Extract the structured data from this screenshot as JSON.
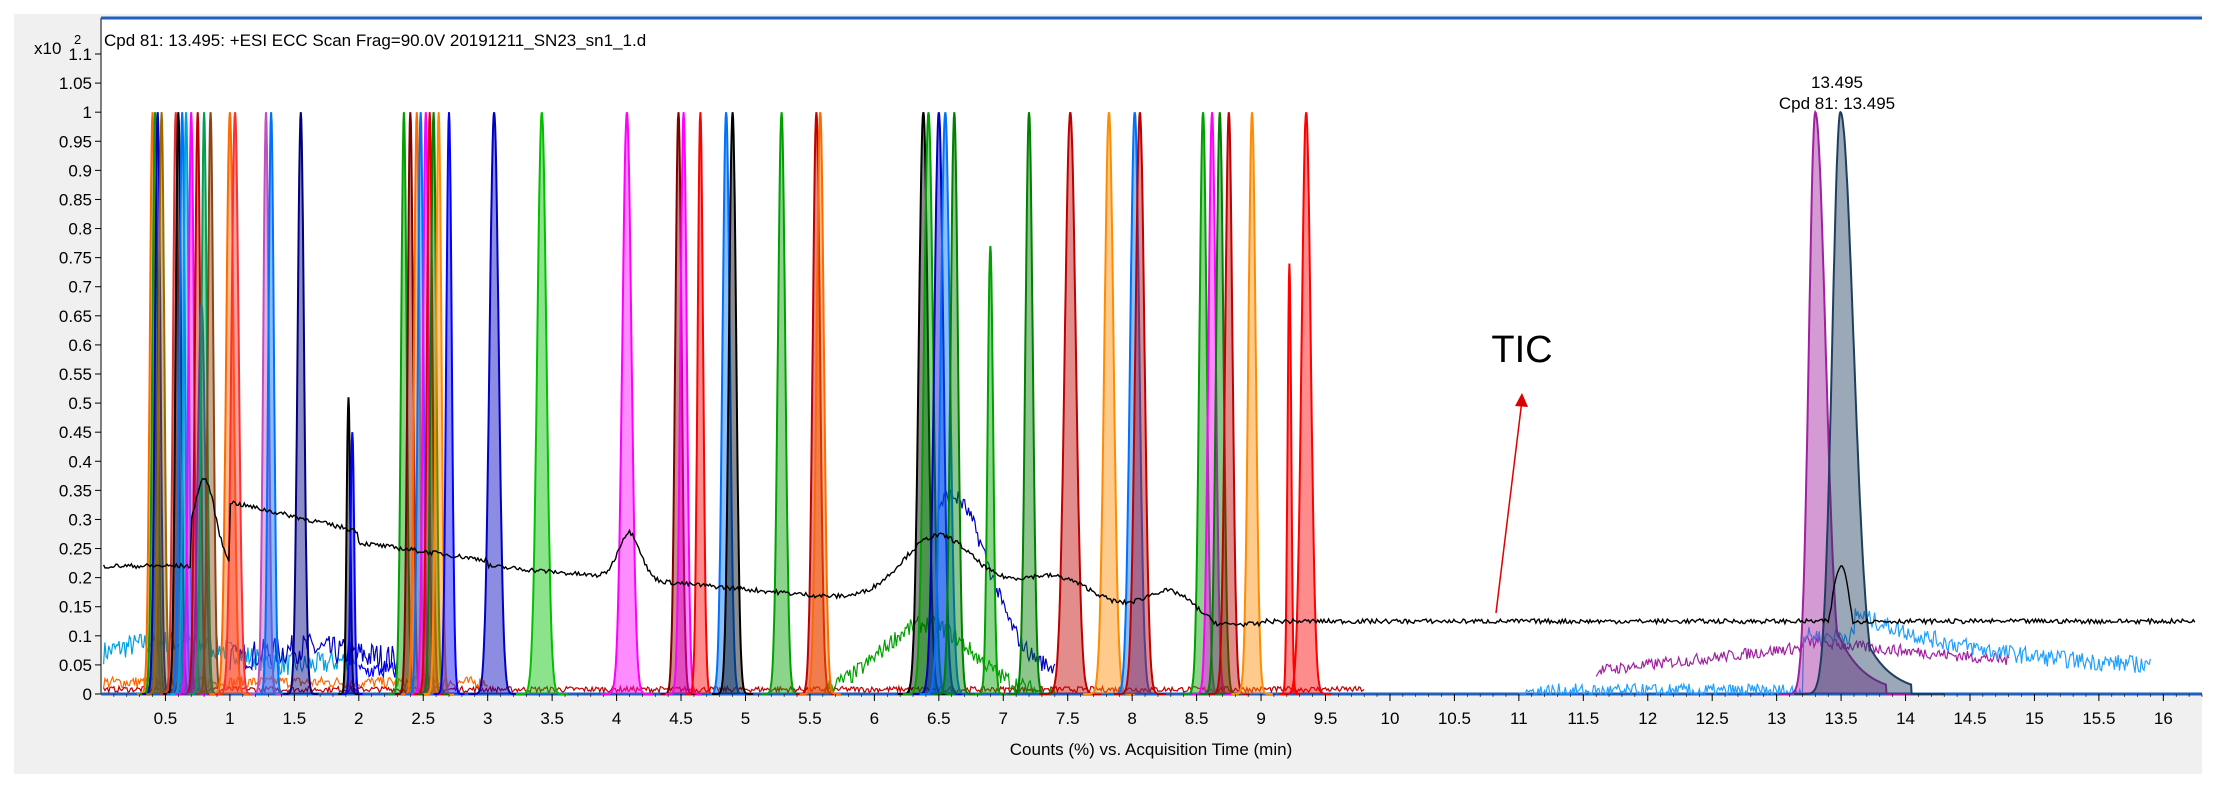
{
  "chart_data": {
    "type": "line",
    "title": "Cpd 81: 13.495: +ESI ECC Scan Frag=90.0V 20191211_SN23_sn1_1.d",
    "y_multiplier": "x10",
    "y_multiplier_exp": "2",
    "xlabel": "Counts (%) vs. Acquisition Time (min)",
    "ylabel": "",
    "xlim": [
      0,
      16.3
    ],
    "ylim": [
      0,
      1.1
    ],
    "x_ticks": [
      "0.5",
      "1",
      "1.5",
      "2",
      "2.5",
      "3",
      "3.5",
      "4",
      "4.5",
      "5",
      "5.5",
      "6",
      "6.5",
      "7",
      "7.5",
      "8",
      "8.5",
      "9",
      "9.5",
      "10",
      "10.5",
      "11",
      "11.5",
      "12",
      "12.5",
      "13",
      "13.5",
      "14",
      "14.5",
      "15",
      "15.5",
      "16"
    ],
    "y_ticks": [
      "0",
      "0.05",
      "0.1",
      "0.15",
      "0.2",
      "0.25",
      "0.3",
      "0.35",
      "0.4",
      "0.45",
      "0.5",
      "0.55",
      "0.6",
      "0.65",
      "0.7",
      "0.75",
      "0.8",
      "0.85",
      "0.9",
      "0.95",
      "1",
      "1.05",
      "1.1"
    ],
    "peak_label_time": "13.495",
    "peak_label_cpd": "Cpd 81: 13.495",
    "annotation_text": "TIC",
    "annotation_color": "#e00000",
    "grid": false,
    "peaks": [
      {
        "t": 0.4,
        "h": 1.0,
        "w": 0.03,
        "color": "#ff6a00"
      },
      {
        "t": 0.42,
        "h": 1.0,
        "w": 0.03,
        "color": "#00a000"
      },
      {
        "t": 0.44,
        "h": 1.0,
        "w": 0.03,
        "color": "#0000c0"
      },
      {
        "t": 0.47,
        "h": 1.0,
        "w": 0.03,
        "color": "#9a6a00"
      },
      {
        "t": 0.58,
        "h": 1.0,
        "w": 0.03,
        "color": "#e03030"
      },
      {
        "t": 0.6,
        "h": 1.0,
        "w": 0.03,
        "color": "#000000"
      },
      {
        "t": 0.63,
        "h": 1.0,
        "w": 0.03,
        "color": "#0070ff"
      },
      {
        "t": 0.66,
        "h": 1.0,
        "w": 0.03,
        "color": "#00a0e0"
      },
      {
        "t": 0.7,
        "h": 1.0,
        "w": 0.03,
        "color": "#ff00ff"
      },
      {
        "t": 0.75,
        "h": 1.0,
        "w": 0.03,
        "color": "#c00000"
      },
      {
        "t": 0.78,
        "h": 0.67,
        "w": 0.04,
        "color": "#7030a0"
      },
      {
        "t": 0.8,
        "h": 1.0,
        "w": 0.03,
        "color": "#00a050"
      },
      {
        "t": 0.85,
        "h": 1.0,
        "w": 0.03,
        "color": "#8b4513"
      },
      {
        "t": 1.0,
        "h": 1.0,
        "w": 0.04,
        "color": "#ff6a00"
      },
      {
        "t": 1.04,
        "h": 1.0,
        "w": 0.04,
        "color": "#ff3030"
      },
      {
        "t": 1.28,
        "h": 1.0,
        "w": 0.03,
        "color": "#c050c0"
      },
      {
        "t": 1.32,
        "h": 1.0,
        "w": 0.03,
        "color": "#0070ff"
      },
      {
        "t": 1.55,
        "h": 1.0,
        "w": 0.035,
        "color": "#000080"
      },
      {
        "t": 1.92,
        "h": 0.51,
        "w": 0.02,
        "color": "#000000"
      },
      {
        "t": 1.95,
        "h": 0.45,
        "w": 0.02,
        "color": "#0000ff"
      },
      {
        "t": 2.35,
        "h": 1.0,
        "w": 0.03,
        "color": "#00a000"
      },
      {
        "t": 2.4,
        "h": 1.0,
        "w": 0.03,
        "color": "#800000"
      },
      {
        "t": 2.45,
        "h": 1.0,
        "w": 0.03,
        "color": "#ff6a00"
      },
      {
        "t": 2.48,
        "h": 1.0,
        "w": 0.03,
        "color": "#0070ff"
      },
      {
        "t": 2.52,
        "h": 1.0,
        "w": 0.03,
        "color": "#ff00ff"
      },
      {
        "t": 2.55,
        "h": 1.0,
        "w": 0.03,
        "color": "#e00000"
      },
      {
        "t": 2.58,
        "h": 1.0,
        "w": 0.03,
        "color": "#008000"
      },
      {
        "t": 2.62,
        "h": 1.0,
        "w": 0.03,
        "color": "#ff8c00"
      },
      {
        "t": 2.7,
        "h": 1.0,
        "w": 0.03,
        "color": "#0000ff"
      },
      {
        "t": 3.05,
        "h": 1.0,
        "w": 0.05,
        "color": "#0000c0"
      },
      {
        "t": 3.42,
        "h": 1.0,
        "w": 0.05,
        "color": "#00c000"
      },
      {
        "t": 4.08,
        "h": 1.0,
        "w": 0.05,
        "color": "#ff00ff"
      },
      {
        "t": 4.48,
        "h": 1.0,
        "w": 0.035,
        "color": "#800000"
      },
      {
        "t": 4.52,
        "h": 1.0,
        "w": 0.035,
        "color": "#ff00ff"
      },
      {
        "t": 4.65,
        "h": 1.0,
        "w": 0.03,
        "color": "#ff0000"
      },
      {
        "t": 4.85,
        "h": 1.0,
        "w": 0.04,
        "color": "#0070ff"
      },
      {
        "t": 4.9,
        "h": 1.0,
        "w": 0.04,
        "color": "#000000"
      },
      {
        "t": 5.28,
        "h": 1.0,
        "w": 0.04,
        "color": "#00a000"
      },
      {
        "t": 5.55,
        "h": 1.0,
        "w": 0.04,
        "color": "#c00000"
      },
      {
        "t": 5.58,
        "h": 1.0,
        "w": 0.04,
        "color": "#ff6a00"
      },
      {
        "t": 6.38,
        "h": 1.0,
        "w": 0.05,
        "color": "#000000"
      },
      {
        "t": 6.42,
        "h": 1.0,
        "w": 0.05,
        "color": "#00a000"
      },
      {
        "t": 6.5,
        "h": 1.0,
        "w": 0.05,
        "color": "#0000c0"
      },
      {
        "t": 6.55,
        "h": 1.0,
        "w": 0.05,
        "color": "#0070ff"
      },
      {
        "t": 6.62,
        "h": 1.0,
        "w": 0.04,
        "color": "#008000"
      },
      {
        "t": 6.9,
        "h": 0.77,
        "w": 0.03,
        "color": "#00a000"
      },
      {
        "t": 7.2,
        "h": 1.0,
        "w": 0.04,
        "color": "#008000"
      },
      {
        "t": 7.52,
        "h": 1.0,
        "w": 0.06,
        "color": "#c00000"
      },
      {
        "t": 7.82,
        "h": 1.0,
        "w": 0.05,
        "color": "#ff8c00"
      },
      {
        "t": 8.02,
        "h": 1.0,
        "w": 0.05,
        "color": "#0070ff"
      },
      {
        "t": 8.06,
        "h": 1.0,
        "w": 0.05,
        "color": "#c00000"
      },
      {
        "t": 8.55,
        "h": 1.0,
        "w": 0.04,
        "color": "#00a000"
      },
      {
        "t": 8.62,
        "h": 1.0,
        "w": 0.04,
        "color": "#ff00ff"
      },
      {
        "t": 8.68,
        "h": 1.0,
        "w": 0.04,
        "color": "#008000"
      },
      {
        "t": 8.75,
        "h": 1.0,
        "w": 0.04,
        "color": "#c00000"
      },
      {
        "t": 8.93,
        "h": 1.0,
        "w": 0.04,
        "color": "#ff8c00"
      },
      {
        "t": 9.22,
        "h": 0.74,
        "w": 0.02,
        "color": "#ff0000"
      },
      {
        "t": 9.35,
        "h": 1.0,
        "w": 0.05,
        "color": "#ff0000"
      },
      {
        "t": 13.3,
        "h": 1.0,
        "w": 0.07,
        "color": "#a020a0"
      },
      {
        "t": 13.495,
        "h": 1.0,
        "w": 0.09,
        "color": "#1f3f5f"
      }
    ]
  }
}
